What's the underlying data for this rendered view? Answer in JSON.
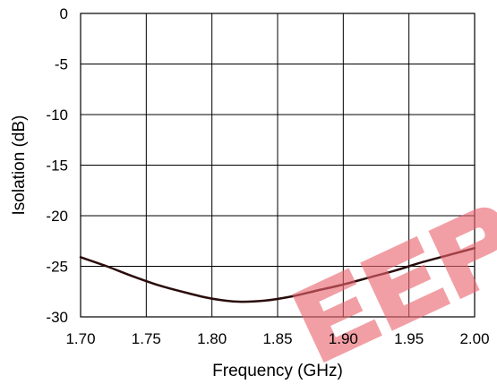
{
  "chart_data": {
    "type": "line",
    "title": "",
    "xlabel": "Frequency (GHz)",
    "ylabel": "Isolation (dB)",
    "xlim": [
      1.7,
      2.0
    ],
    "ylim": [
      -30,
      0
    ],
    "x_ticks": [
      "1.70",
      "1.75",
      "1.80",
      "1.85",
      "1.90",
      "1.95",
      "2.00"
    ],
    "y_ticks": [
      "0",
      "-5",
      "-10",
      "-15",
      "-20",
      "-25",
      "-30"
    ],
    "grid": true,
    "series": [
      {
        "x": [
          1.7,
          1.72,
          1.74,
          1.76,
          1.78,
          1.8,
          1.82,
          1.84,
          1.86,
          1.88,
          1.9,
          1.92,
          1.94,
          1.96,
          1.98,
          2.0
        ],
        "y": [
          -24.1,
          -25.0,
          -26.0,
          -26.9,
          -27.6,
          -28.2,
          -28.5,
          -28.4,
          -28.0,
          -27.4,
          -26.8,
          -26.1,
          -25.4,
          -24.6,
          -23.9,
          -23.2
        ]
      }
    ],
    "colors": {
      "series": "#2a0b0b",
      "grid": "#000000",
      "watermark": "#e8646e"
    }
  }
}
